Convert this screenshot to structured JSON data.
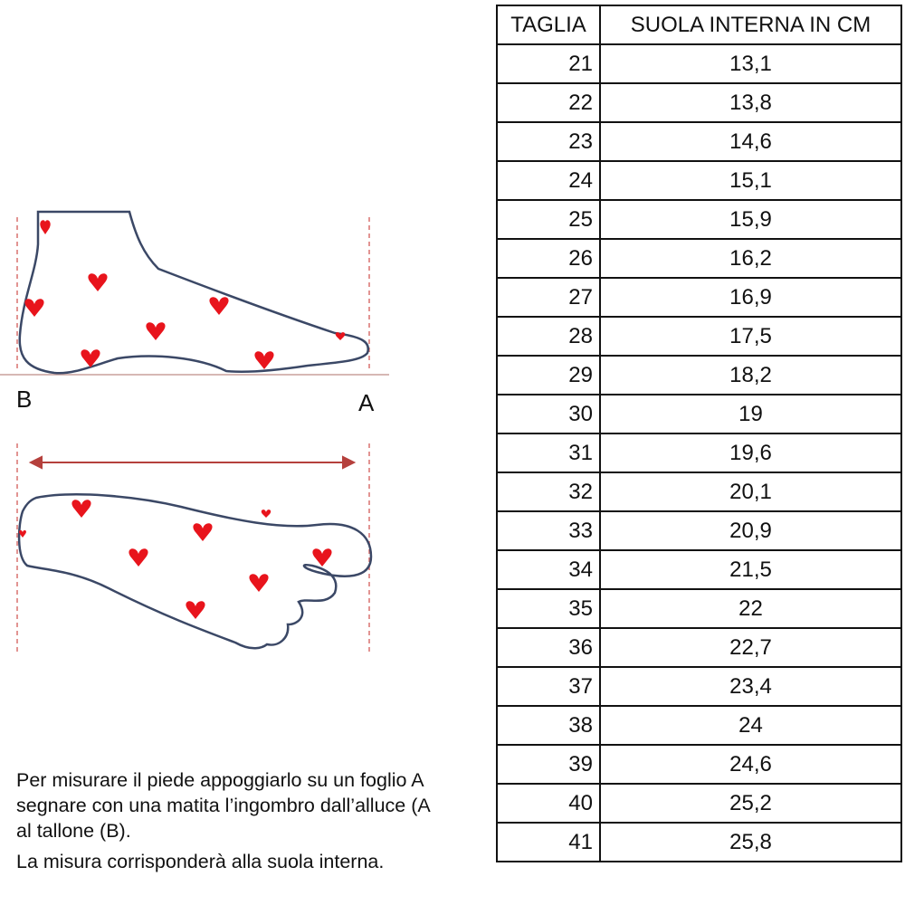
{
  "diagram": {
    "heel_label": "B",
    "toe_label": "A",
    "colors": {
      "outline": "#3b4866",
      "hearts": "#e8141c",
      "guides": "#d9706e",
      "arrow": "#b5403c"
    }
  },
  "instructions": {
    "lines": [
      "Per misurare il piede appoggiarlo su un foglio A",
      "segnare con una matita l’ingombro dall’alluce (A",
      "al tallone (B).",
      "La misura corrisponderà alla suola interna."
    ]
  },
  "table": {
    "headers": [
      "TAGLIA",
      "SUOLA INTERNA IN CM"
    ],
    "rows": [
      [
        "21",
        "13,1"
      ],
      [
        "22",
        "13,8"
      ],
      [
        "23",
        "14,6"
      ],
      [
        "24",
        "15,1"
      ],
      [
        "25",
        "15,9"
      ],
      [
        "26",
        "16,2"
      ],
      [
        "27",
        "16,9"
      ],
      [
        "28",
        "17,5"
      ],
      [
        "29",
        "18,2"
      ],
      [
        "30",
        "19"
      ],
      [
        "31",
        "19,6"
      ],
      [
        "32",
        "20,1"
      ],
      [
        "33",
        "20,9"
      ],
      [
        "34",
        "21,5"
      ],
      [
        "35",
        "22"
      ],
      [
        "36",
        "22,7"
      ],
      [
        "37",
        "23,4"
      ],
      [
        "38",
        "24"
      ],
      [
        "39",
        "24,6"
      ],
      [
        "40",
        "25,2"
      ],
      [
        "41",
        "25,8"
      ]
    ]
  }
}
